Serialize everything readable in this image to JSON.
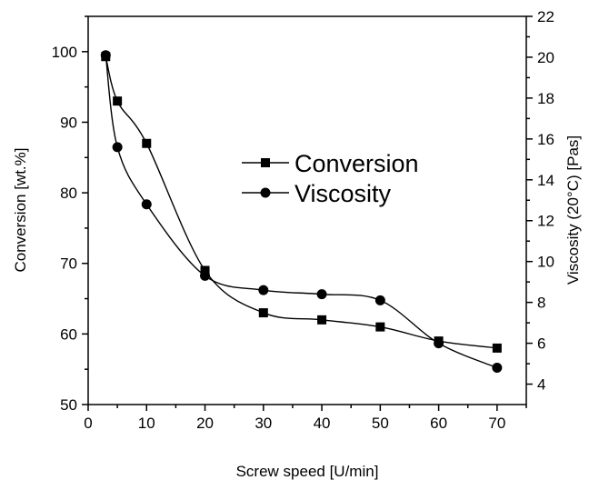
{
  "chart_data": {
    "type": "line",
    "title": "",
    "xlabel": "Screw speed [U/min]",
    "ylabel": "Conversion [wt.%]",
    "y2label": "Viscosity (20°C) [Pas]",
    "xlim": [
      0,
      75
    ],
    "ylim": [
      50,
      105
    ],
    "y2lim": [
      3,
      22
    ],
    "xticks": [
      0,
      10,
      20,
      30,
      40,
      50,
      60,
      70
    ],
    "yticks": [
      50,
      60,
      70,
      80,
      90,
      100
    ],
    "y2ticks": [
      4,
      6,
      8,
      10,
      12,
      14,
      16,
      18,
      20,
      22
    ],
    "grid": false,
    "legend_position": "center",
    "series": [
      {
        "name": "Conversion",
        "axis": "left",
        "marker": "square",
        "x": [
          3,
          5,
          10,
          20,
          30,
          40,
          50,
          60,
          70
        ],
        "values": [
          99.3,
          93,
          87,
          69,
          63,
          62,
          61,
          59,
          58
        ]
      },
      {
        "name": "Viscosity",
        "axis": "right",
        "marker": "circle",
        "x": [
          3,
          5,
          10,
          20,
          30,
          40,
          50,
          60,
          70
        ],
        "values": [
          20.1,
          15.6,
          12.8,
          9.3,
          8.6,
          8.4,
          8.1,
          6.0,
          4.8
        ]
      }
    ]
  }
}
